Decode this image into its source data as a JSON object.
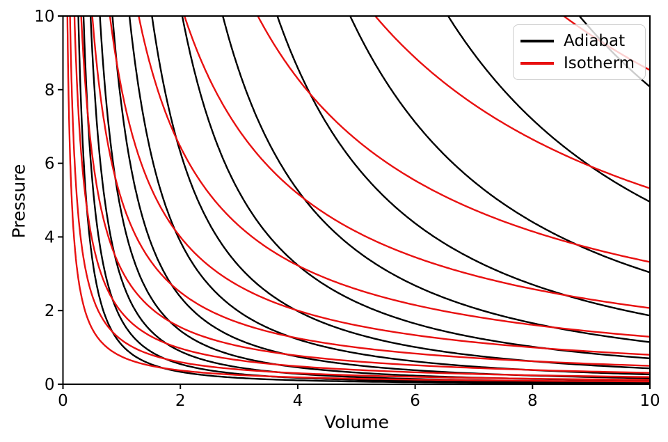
{
  "chart_data": {
    "type": "line",
    "title": "",
    "xlabel": "Volume",
    "ylabel": "Pressure",
    "xlim": [
      0,
      10
    ],
    "ylim": [
      0,
      10
    ],
    "xticks": [
      "0",
      "2",
      "4",
      "6",
      "8",
      "10"
    ],
    "ytick_values": [
      0,
      2,
      4,
      6,
      8,
      10
    ],
    "xtick_values": [
      0,
      2,
      4,
      6,
      8,
      10
    ],
    "yticks": [
      "0",
      "2",
      "4",
      "6",
      "8",
      "10"
    ],
    "grid": false,
    "background": "#ffffff",
    "spine_color": "#000000",
    "gamma": 1.66667,
    "series": [
      {
        "name": "Adiabat",
        "color": "#000000",
        "formula": "P = K / V^(5/3)",
        "exponent": 1.66667,
        "constants": [
          1.07,
          1.74,
          2.84,
          4.62,
          7.53,
          12.3,
          20.0,
          32.6,
          53.1,
          86.6,
          141.0,
          230.0,
          375.0
        ]
      },
      {
        "name": "Isotherm",
        "color": "#e81010",
        "formula": "P = c / V",
        "exponent": 1.0,
        "constants": [
          0.75,
          1.2,
          1.95,
          3.1,
          5.0,
          8.0,
          12.9,
          20.7,
          33.2,
          53.2,
          85.3
        ]
      }
    ],
    "legend": {
      "position": "upper right",
      "entries": [
        {
          "label": "Adiabat",
          "color": "#000000"
        },
        {
          "label": "Isotherm",
          "color": "#e81010"
        }
      ]
    }
  }
}
